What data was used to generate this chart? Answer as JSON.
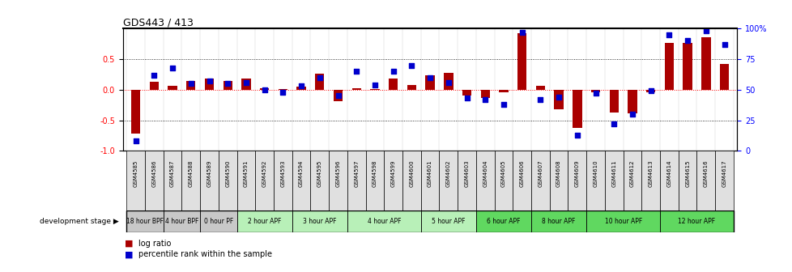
{
  "title": "GDS443 / 413",
  "samples": [
    "GSM4585",
    "GSM4586",
    "GSM4587",
    "GSM4588",
    "GSM4589",
    "GSM4590",
    "GSM4591",
    "GSM4592",
    "GSM4593",
    "GSM4594",
    "GSM4595",
    "GSM4596",
    "GSM4597",
    "GSM4598",
    "GSM4599",
    "GSM4600",
    "GSM4601",
    "GSM4602",
    "GSM4603",
    "GSM4604",
    "GSM4605",
    "GSM4606",
    "GSM4607",
    "GSM4608",
    "GSM4609",
    "GSM4610",
    "GSM4611",
    "GSM4612",
    "GSM4613",
    "GSM4614",
    "GSM4615",
    "GSM4616",
    "GSM4617"
  ],
  "log_ratio": [
    -0.72,
    0.13,
    0.07,
    0.15,
    0.18,
    0.14,
    0.19,
    0.02,
    0.01,
    0.05,
    0.26,
    -0.19,
    0.02,
    0.01,
    0.18,
    0.08,
    0.24,
    0.28,
    -0.1,
    -0.13,
    -0.04,
    0.92,
    0.06,
    -0.32,
    -0.62,
    -0.04,
    -0.37,
    -0.38,
    -0.04,
    0.76,
    0.76,
    0.86,
    0.42
  ],
  "percentile": [
    8,
    62,
    68,
    55,
    57,
    55,
    56,
    50,
    48,
    53,
    60,
    45,
    65,
    54,
    65,
    70,
    60,
    56,
    43,
    42,
    38,
    97,
    42,
    44,
    13,
    47,
    22,
    30,
    49,
    95,
    90,
    98,
    87
  ],
  "stage_groups": [
    {
      "label": "18 hour BPF",
      "start": 0,
      "end": 2,
      "color": "#c8c8c8"
    },
    {
      "label": "4 hour BPF",
      "start": 2,
      "end": 4,
      "color": "#c8c8c8"
    },
    {
      "label": "0 hour PF",
      "start": 4,
      "end": 6,
      "color": "#c8c8c8"
    },
    {
      "label": "2 hour APF",
      "start": 6,
      "end": 9,
      "color": "#b8f0b8"
    },
    {
      "label": "3 hour APF",
      "start": 9,
      "end": 12,
      "color": "#b8f0b8"
    },
    {
      "label": "4 hour APF",
      "start": 12,
      "end": 16,
      "color": "#b8f0b8"
    },
    {
      "label": "5 hour APF",
      "start": 16,
      "end": 19,
      "color": "#b8f0b8"
    },
    {
      "label": "6 hour APF",
      "start": 19,
      "end": 22,
      "color": "#60d860"
    },
    {
      "label": "8 hour APF",
      "start": 22,
      "end": 25,
      "color": "#60d860"
    },
    {
      "label": "10 hour APF",
      "start": 25,
      "end": 29,
      "color": "#60d860"
    },
    {
      "label": "12 hour APF",
      "start": 29,
      "end": 33,
      "color": "#60d860"
    }
  ],
  "bar_color": "#aa0000",
  "dot_color": "#0000cc",
  "ylim_left": [
    -1.0,
    1.0
  ],
  "yticks_left": [
    -1.0,
    -0.5,
    0.0,
    0.5
  ],
  "yticks_right_vals": [
    -1.0,
    -0.5,
    0.0,
    0.5,
    1.0
  ],
  "yticks_right_labels": [
    "0",
    "25",
    "50",
    "75",
    "100%"
  ],
  "dev_stage_label": "development stage",
  "legend_bar": "log ratio",
  "legend_dot": "percentile rank within the sample"
}
